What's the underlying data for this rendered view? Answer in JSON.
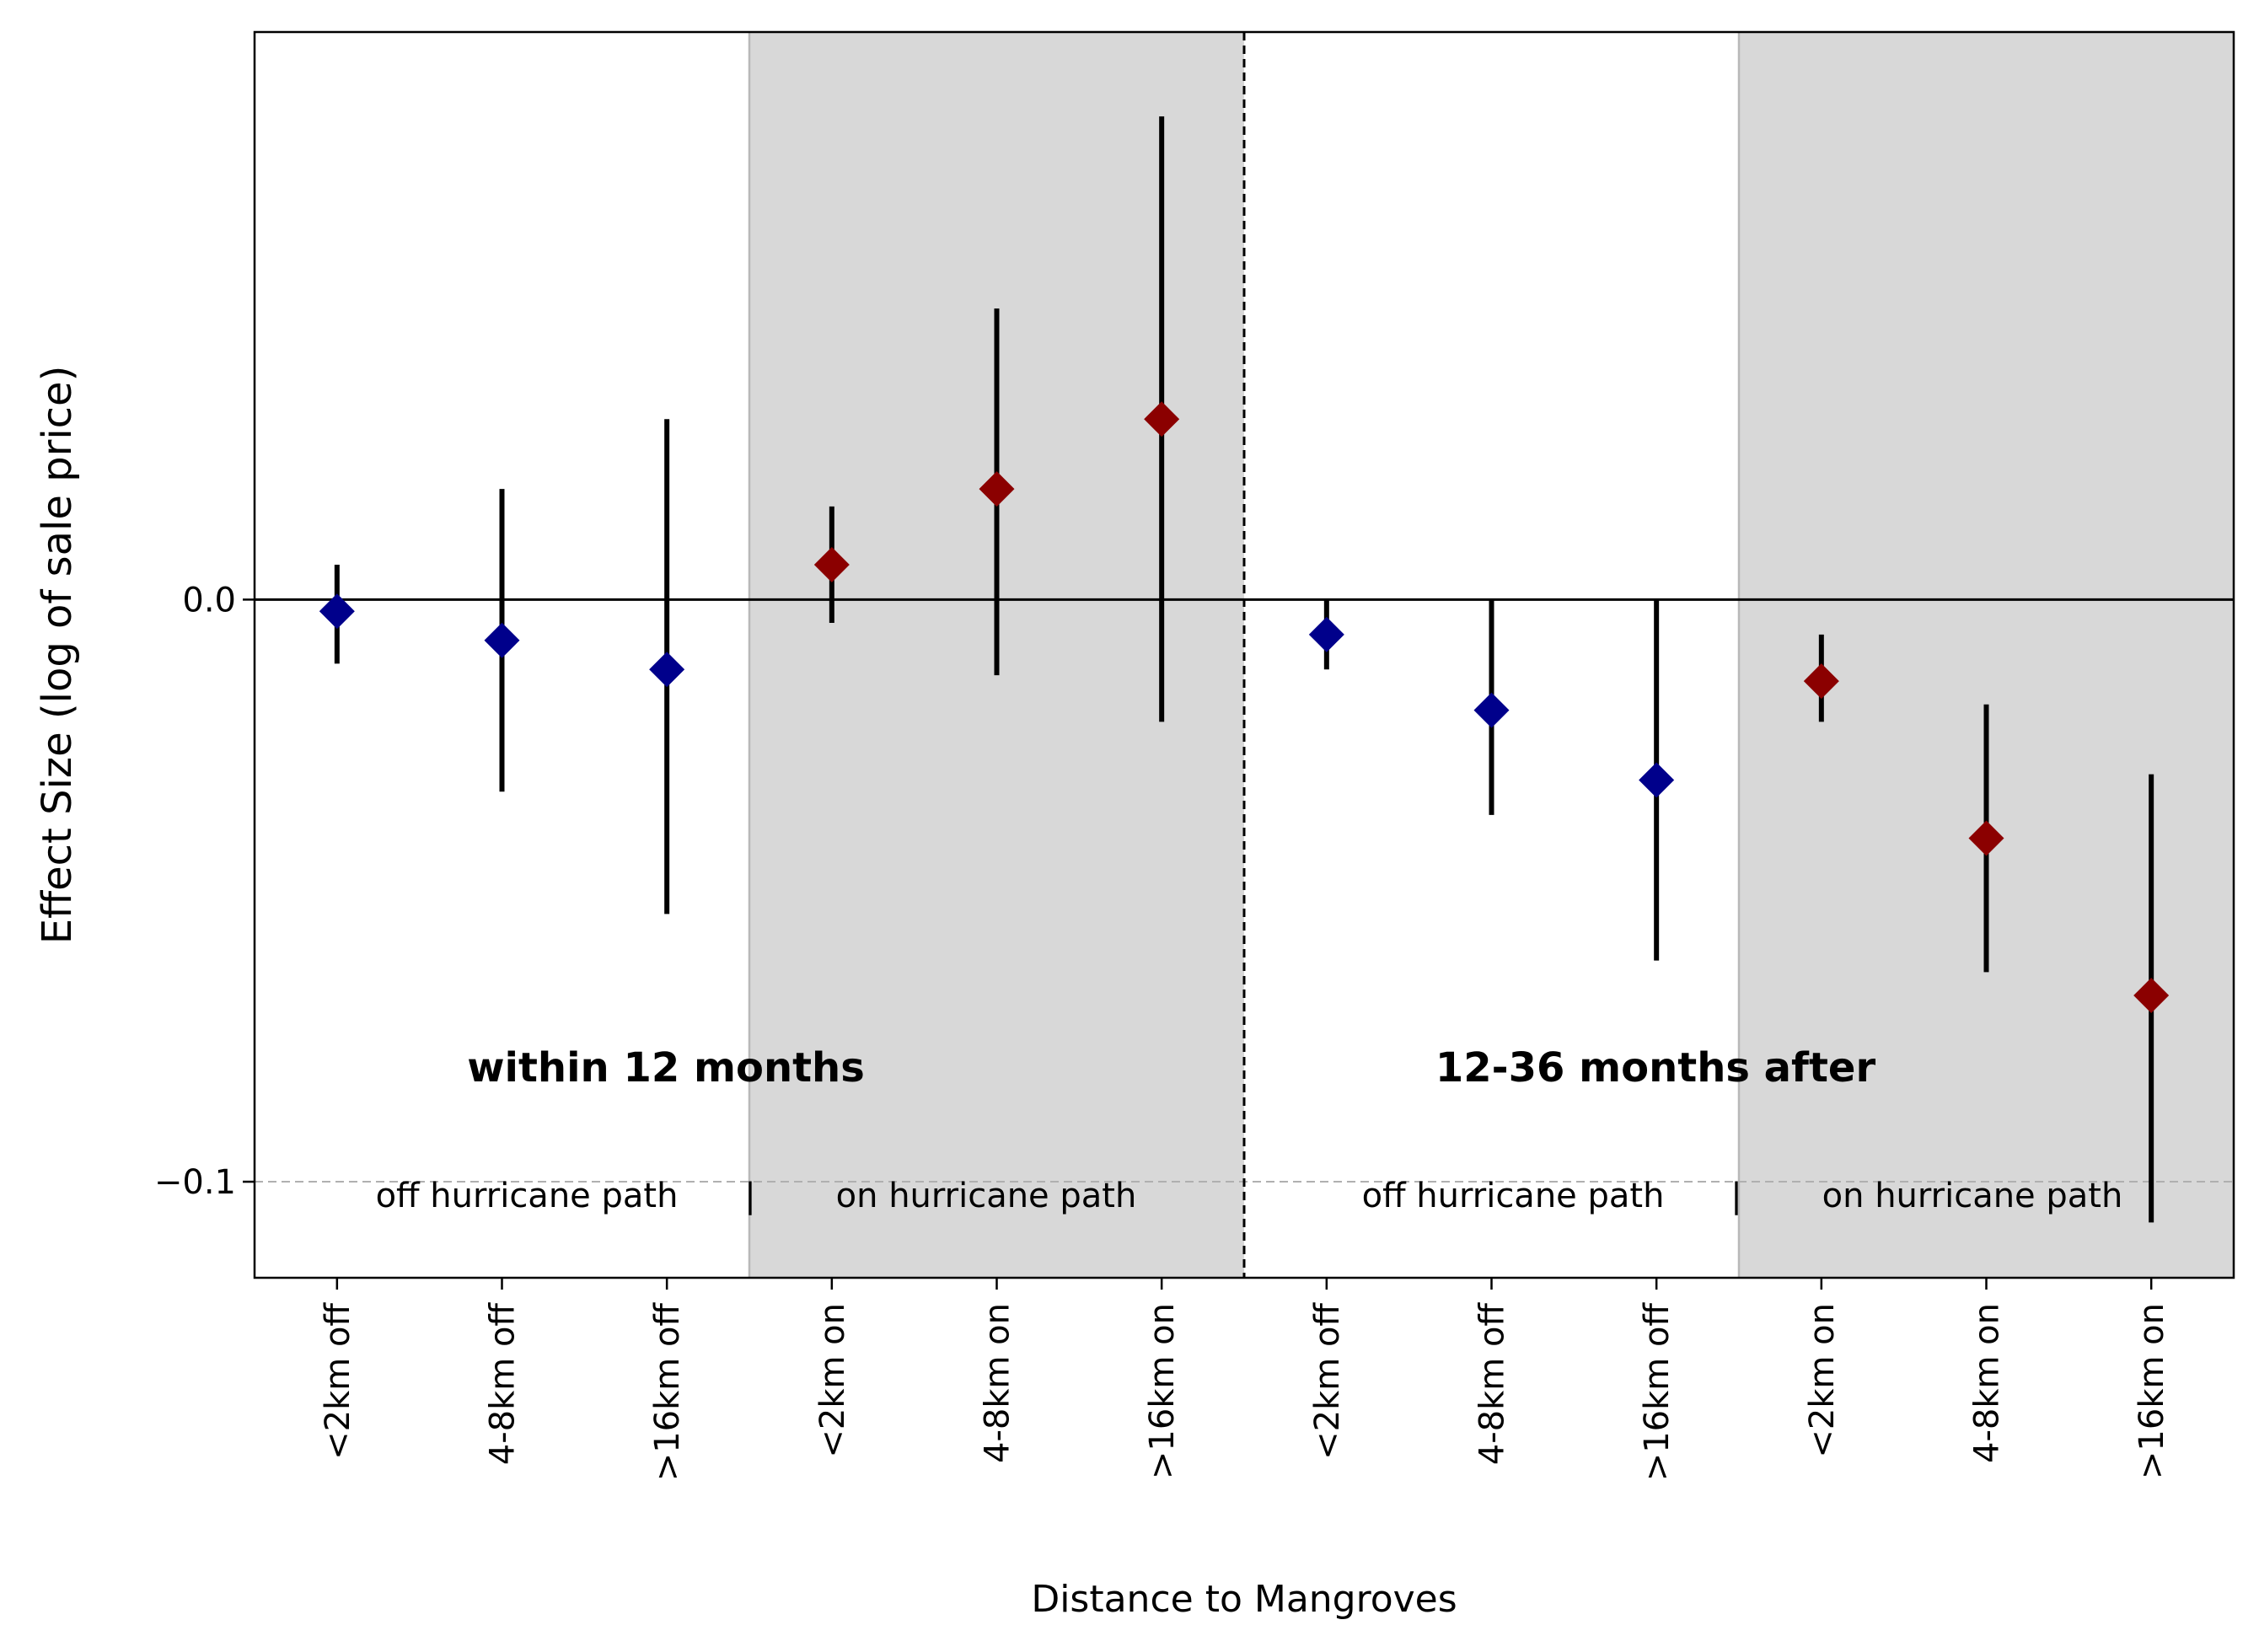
{
  "chart_data": {
    "type": "scatter",
    "title": "",
    "xlabel": "Distance to Mangroves",
    "ylabel": "Effect Size (log of sale price)",
    "ylim": [
      -0.1165,
      0.0975
    ],
    "yticks": [
      0.0,
      -0.1
    ],
    "ytick_labels": [
      "0.0",
      "−0.1"
    ],
    "grid": false,
    "legend": "none",
    "reference_lines": [
      {
        "y": 0.0,
        "style": "solid",
        "color": "#000000"
      },
      {
        "y": -0.1,
        "style": "dashed",
        "color": "#b0b0b0"
      }
    ],
    "categories": [
      "<2km off",
      "4-8km off",
      ">16km off",
      "<2km on",
      "4-8km on",
      ">16km on",
      "<2km off",
      "4-8km off",
      ">16km off",
      "<2km on",
      "4-8km on",
      ">16km on"
    ],
    "points": [
      {
        "y": -0.002,
        "low": -0.011,
        "high": 0.006,
        "color": "#00008b"
      },
      {
        "y": -0.007,
        "low": -0.033,
        "high": 0.019,
        "color": "#00008b"
      },
      {
        "y": -0.012,
        "low": -0.054,
        "high": 0.031,
        "color": "#00008b"
      },
      {
        "y": 0.006,
        "low": -0.004,
        "high": 0.016,
        "color": "#8b0000"
      },
      {
        "y": 0.019,
        "low": -0.013,
        "high": 0.05,
        "color": "#8b0000"
      },
      {
        "y": 0.031,
        "low": -0.021,
        "high": 0.083,
        "color": "#8b0000"
      },
      {
        "y": -0.006,
        "low": -0.012,
        "high": 0.0,
        "color": "#00008b"
      },
      {
        "y": -0.019,
        "low": -0.037,
        "high": 0.0,
        "color": "#00008b"
      },
      {
        "y": -0.031,
        "low": -0.062,
        "high": 0.0,
        "color": "#00008b"
      },
      {
        "y": -0.014,
        "low": -0.021,
        "high": -0.006,
        "color": "#8b0000"
      },
      {
        "y": -0.041,
        "low": -0.064,
        "high": -0.018,
        "color": "#8b0000"
      },
      {
        "y": -0.068,
        "low": -0.107,
        "high": -0.03,
        "color": "#8b0000"
      }
    ],
    "colors": {
      "off_path": "#00008b",
      "on_path": "#8b0000",
      "shade": "#d8d8d8"
    },
    "shaded_groups": [
      [
        3,
        5
      ],
      [
        9,
        11
      ]
    ],
    "panel_divider_after_index": 5,
    "annotations": {
      "panel_left_title": "within 12 months",
      "panel_right_title": "12-36 months after",
      "left_off_label": "off hurricane path",
      "left_sep": "|",
      "left_on_label": "on hurricane path",
      "right_off_label": "off hurricane path",
      "right_sep": "|",
      "right_on_label": "on hurricane path"
    }
  }
}
